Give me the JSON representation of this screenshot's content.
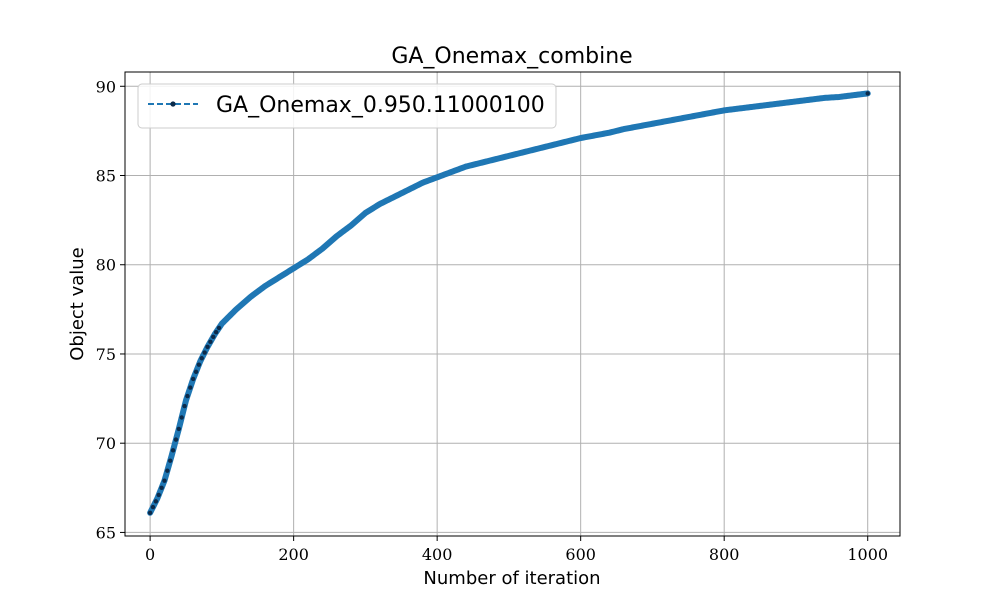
{
  "chart_data": {
    "type": "line",
    "title": "GA_Onemax_combine",
    "xlabel": "Number of iteration",
    "ylabel": "Object value",
    "xlim": [
      -35,
      1045
    ],
    "ylim": [
      64.8,
      90.8
    ],
    "xticks": [
      0,
      200,
      400,
      600,
      800,
      1000
    ],
    "yticks": [
      65,
      70,
      75,
      80,
      85,
      90
    ],
    "xtick_labels": [
      "0",
      "200",
      "400",
      "600",
      "800",
      "1000"
    ],
    "ytick_labels": [
      "65",
      "70",
      "75",
      "80",
      "85",
      "90"
    ],
    "grid": true,
    "legend_position": "top-left",
    "series": [
      {
        "name": "GA_Onemax_0.950.11000100",
        "color": "#1f77b4",
        "marker_color": "#0b2a4a",
        "line_style": "dashed",
        "x": [
          0,
          10,
          20,
          30,
          40,
          50,
          60,
          70,
          80,
          90,
          100,
          120,
          140,
          160,
          180,
          200,
          220,
          240,
          260,
          280,
          300,
          320,
          340,
          360,
          380,
          400,
          420,
          440,
          460,
          480,
          500,
          520,
          540,
          560,
          580,
          600,
          620,
          640,
          660,
          680,
          700,
          720,
          740,
          760,
          780,
          800,
          820,
          840,
          860,
          880,
          900,
          920,
          940,
          960,
          980,
          1000
        ],
        "values": [
          66.1,
          66.9,
          67.9,
          69.3,
          70.8,
          72.4,
          73.6,
          74.6,
          75.4,
          76.1,
          76.7,
          77.5,
          78.2,
          78.8,
          79.3,
          79.8,
          80.3,
          80.9,
          81.6,
          82.2,
          82.9,
          83.4,
          83.8,
          84.2,
          84.6,
          84.9,
          85.2,
          85.5,
          85.7,
          85.9,
          86.1,
          86.3,
          86.5,
          86.7,
          86.9,
          87.1,
          87.25,
          87.4,
          87.6,
          87.75,
          87.9,
          88.05,
          88.2,
          88.35,
          88.5,
          88.65,
          88.75,
          88.85,
          88.95,
          89.05,
          89.15,
          89.25,
          89.35,
          89.4,
          89.5,
          89.6
        ]
      }
    ]
  }
}
